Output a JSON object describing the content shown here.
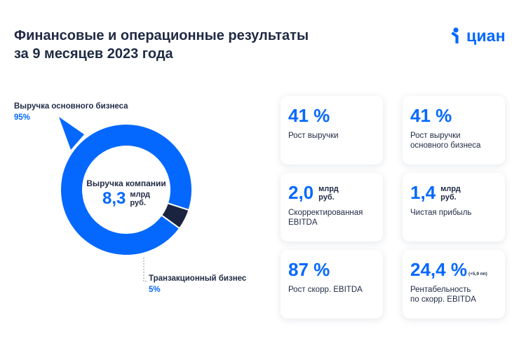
{
  "title_line1": "Финансовые и операционные результаты",
  "title_line2": "за 9 месяцев 2023 года",
  "logo": {
    "text": "циан",
    "icon": "cian-person-icon",
    "color": "#0468ff"
  },
  "chart_data": {
    "type": "pie",
    "variant": "donut",
    "categories": [
      "Выручка основного бизнеса",
      "Транзакционный бизнес"
    ],
    "values": [
      95,
      5
    ],
    "value_labels": [
      "95%",
      "5%"
    ],
    "colors": [
      "#0468ff",
      "#1a2440"
    ],
    "center": {
      "title": "Выручка компании",
      "value": "8,3",
      "unit_line1": "млрд",
      "unit_line2": "руб."
    }
  },
  "cards": [
    {
      "value": "41 %",
      "unit_line1": "",
      "unit_line2": "",
      "note": "",
      "label_line1": "Рост выручки",
      "label_line2": ""
    },
    {
      "value": "41 %",
      "unit_line1": "",
      "unit_line2": "",
      "note": "",
      "label_line1": "Рост выручки",
      "label_line2": "основного бизнеса"
    },
    {
      "value": "2,0",
      "unit_line1": "млрд",
      "unit_line2": "руб.",
      "note": "",
      "label_line1": "Скорректированная",
      "label_line2": "EBITDA"
    },
    {
      "value": "1,4",
      "unit_line1": "млрд",
      "unit_line2": "руб.",
      "note": "",
      "label_line1": "Чистая прибыль",
      "label_line2": ""
    },
    {
      "value": "87 %",
      "unit_line1": "",
      "unit_line2": "",
      "note": "",
      "label_line1": "Рост скорр. EBITDA",
      "label_line2": ""
    },
    {
      "value": "24,4 %",
      "unit_line1": "",
      "unit_line2": "",
      "note": "(+5,9 пп)",
      "label_line1": "Рентабельность",
      "label_line2": "по скорр. EBITDA"
    }
  ]
}
